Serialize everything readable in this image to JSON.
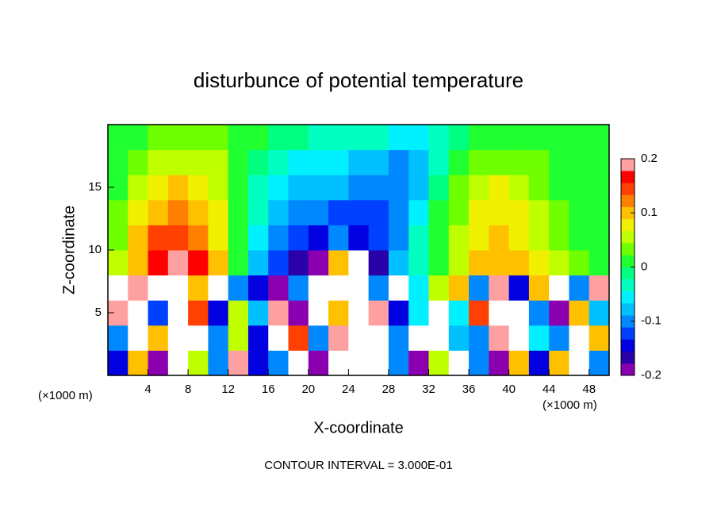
{
  "chart_data": {
    "type": "heatmap",
    "title": "disturbunce of potential temperature",
    "xlabel": "X-coordinate",
    "ylabel": "Z-coordinate",
    "x_unit_label": "(×1000 m)",
    "footer": "CONTOUR INTERVAL = 3.000E-01",
    "x": [
      1,
      3,
      5,
      7,
      9,
      11,
      13,
      15,
      17,
      19,
      21,
      23,
      25,
      27,
      29,
      31,
      33,
      35,
      37,
      39,
      41,
      43,
      45,
      47,
      49
    ],
    "y": [
      1,
      3,
      5,
      7,
      9,
      11,
      13,
      15,
      17,
      19
    ],
    "values": [
      [
        -0.15,
        0.1,
        -0.2,
        0.3,
        0.05,
        -0.1,
        0.2,
        -0.15,
        -0.1,
        0.3,
        -0.2,
        0.3,
        0.3,
        0.25,
        -0.1,
        -0.2,
        0.05,
        0.3,
        -0.1,
        -0.2,
        0.1,
        -0.15,
        0.1,
        0.3,
        -0.1
      ],
      [
        -0.1,
        0.3,
        0.1,
        0.3,
        0.3,
        -0.1,
        0.05,
        -0.15,
        0.3,
        0.15,
        -0.1,
        0.2,
        0.3,
        0.3,
        -0.1,
        0.3,
        0.3,
        -0.08,
        -0.1,
        0.2,
        0.3,
        -0.05,
        -0.1,
        -0.25,
        0.1
      ],
      [
        0.2,
        0.3,
        -0.12,
        0.3,
        0.15,
        -0.15,
        0.05,
        -0.08,
        0.2,
        -0.2,
        0.3,
        0.1,
        0.3,
        0.2,
        -0.15,
        -0.05,
        0.3,
        -0.05,
        0.15,
        0.3,
        -0.3,
        -0.1,
        -0.2,
        0.1,
        -0.08
      ],
      [
        0.3,
        0.2,
        0.3,
        0.25,
        0.1,
        0.3,
        -0.1,
        -0.15,
        -0.2,
        -0.1,
        0.3,
        -0.25,
        0.3,
        -0.1,
        0.3,
        -0.05,
        0.05,
        0.1,
        -0.1,
        0.2,
        -0.15,
        0.1,
        0.3,
        -0.1,
        0.2
      ],
      [
        0.05,
        0.1,
        0.16,
        0.18,
        0.16,
        0.1,
        0.02,
        -0.07,
        -0.12,
        -0.17,
        -0.18,
        0.1,
        0.25,
        -0.16,
        -0.08,
        -0.03,
        0.02,
        0.06,
        0.1,
        0.11,
        0.09,
        0.07,
        0.05,
        0.03,
        0.02
      ],
      [
        0.04,
        0.09,
        0.14,
        0.15,
        0.13,
        0.08,
        0.01,
        -0.06,
        -0.1,
        -0.13,
        -0.15,
        -0.1,
        -0.14,
        -0.13,
        -0.09,
        -0.04,
        0.01,
        0.05,
        0.08,
        0.09,
        0.08,
        0.06,
        0.04,
        0.02,
        0.01
      ],
      [
        0.03,
        0.07,
        0.11,
        0.12,
        0.1,
        0.07,
        0.02,
        -0.04,
        -0.08,
        -0.1,
        -0.11,
        -0.12,
        -0.12,
        -0.12,
        -0.1,
        -0.06,
        0,
        0.04,
        0.07,
        0.08,
        0.07,
        0.05,
        0.03,
        0.02,
        0.01
      ],
      [
        0.02,
        0.05,
        0.08,
        0.09,
        0.08,
        0.06,
        0.02,
        -0.03,
        -0.06,
        -0.07,
        -0.08,
        -0.08,
        -0.09,
        -0.1,
        -0.1,
        -0.08,
        -0.02,
        0.03,
        0.06,
        0.07,
        0.06,
        0.04,
        0.02,
        0.01,
        0.01
      ],
      [
        0.01,
        0.03,
        0.05,
        0.06,
        0.06,
        0.05,
        0.02,
        -0.02,
        -0.04,
        -0.05,
        -0.05,
        -0.06,
        -0.07,
        -0.08,
        -0.09,
        -0.08,
        -0.03,
        0.01,
        0.03,
        0.04,
        0.04,
        0.03,
        0.02,
        0.01,
        0.01
      ],
      [
        0,
        0.02,
        0.03,
        0.03,
        0.03,
        0.03,
        0.02,
        0.01,
        -0.01,
        -0.02,
        -0.03,
        -0.03,
        -0.03,
        -0.04,
        -0.06,
        -0.06,
        -0.03,
        -0.01,
        0.01,
        0.02,
        0.02,
        0.02,
        0.01,
        0.01,
        0.01
      ]
    ],
    "xlim": [
      0,
      50
    ],
    "ylim": [
      0,
      20
    ],
    "xticks": [
      4,
      8,
      12,
      16,
      20,
      24,
      28,
      32,
      36,
      40,
      44,
      48
    ],
    "yticks": [
      5,
      10,
      15
    ],
    "colorbar": {
      "lim": [
        -0.2,
        0.2
      ],
      "ticks": [
        -0.2,
        -0.1,
        0,
        0.1,
        0.2
      ],
      "colors": [
        "#8a00b0",
        "#2a00a8",
        "#0000e0",
        "#0040ff",
        "#0088ff",
        "#00c0ff",
        "#00f0ff",
        "#00ffc0",
        "#00ff80",
        "#20ff30",
        "#70ff00",
        "#c0ff00",
        "#f0f000",
        "#ffc000",
        "#ff8000",
        "#ff4000",
        "#ff0000",
        "#ffa0a0"
      ],
      "out_of_range_color": "#ffffff"
    }
  }
}
